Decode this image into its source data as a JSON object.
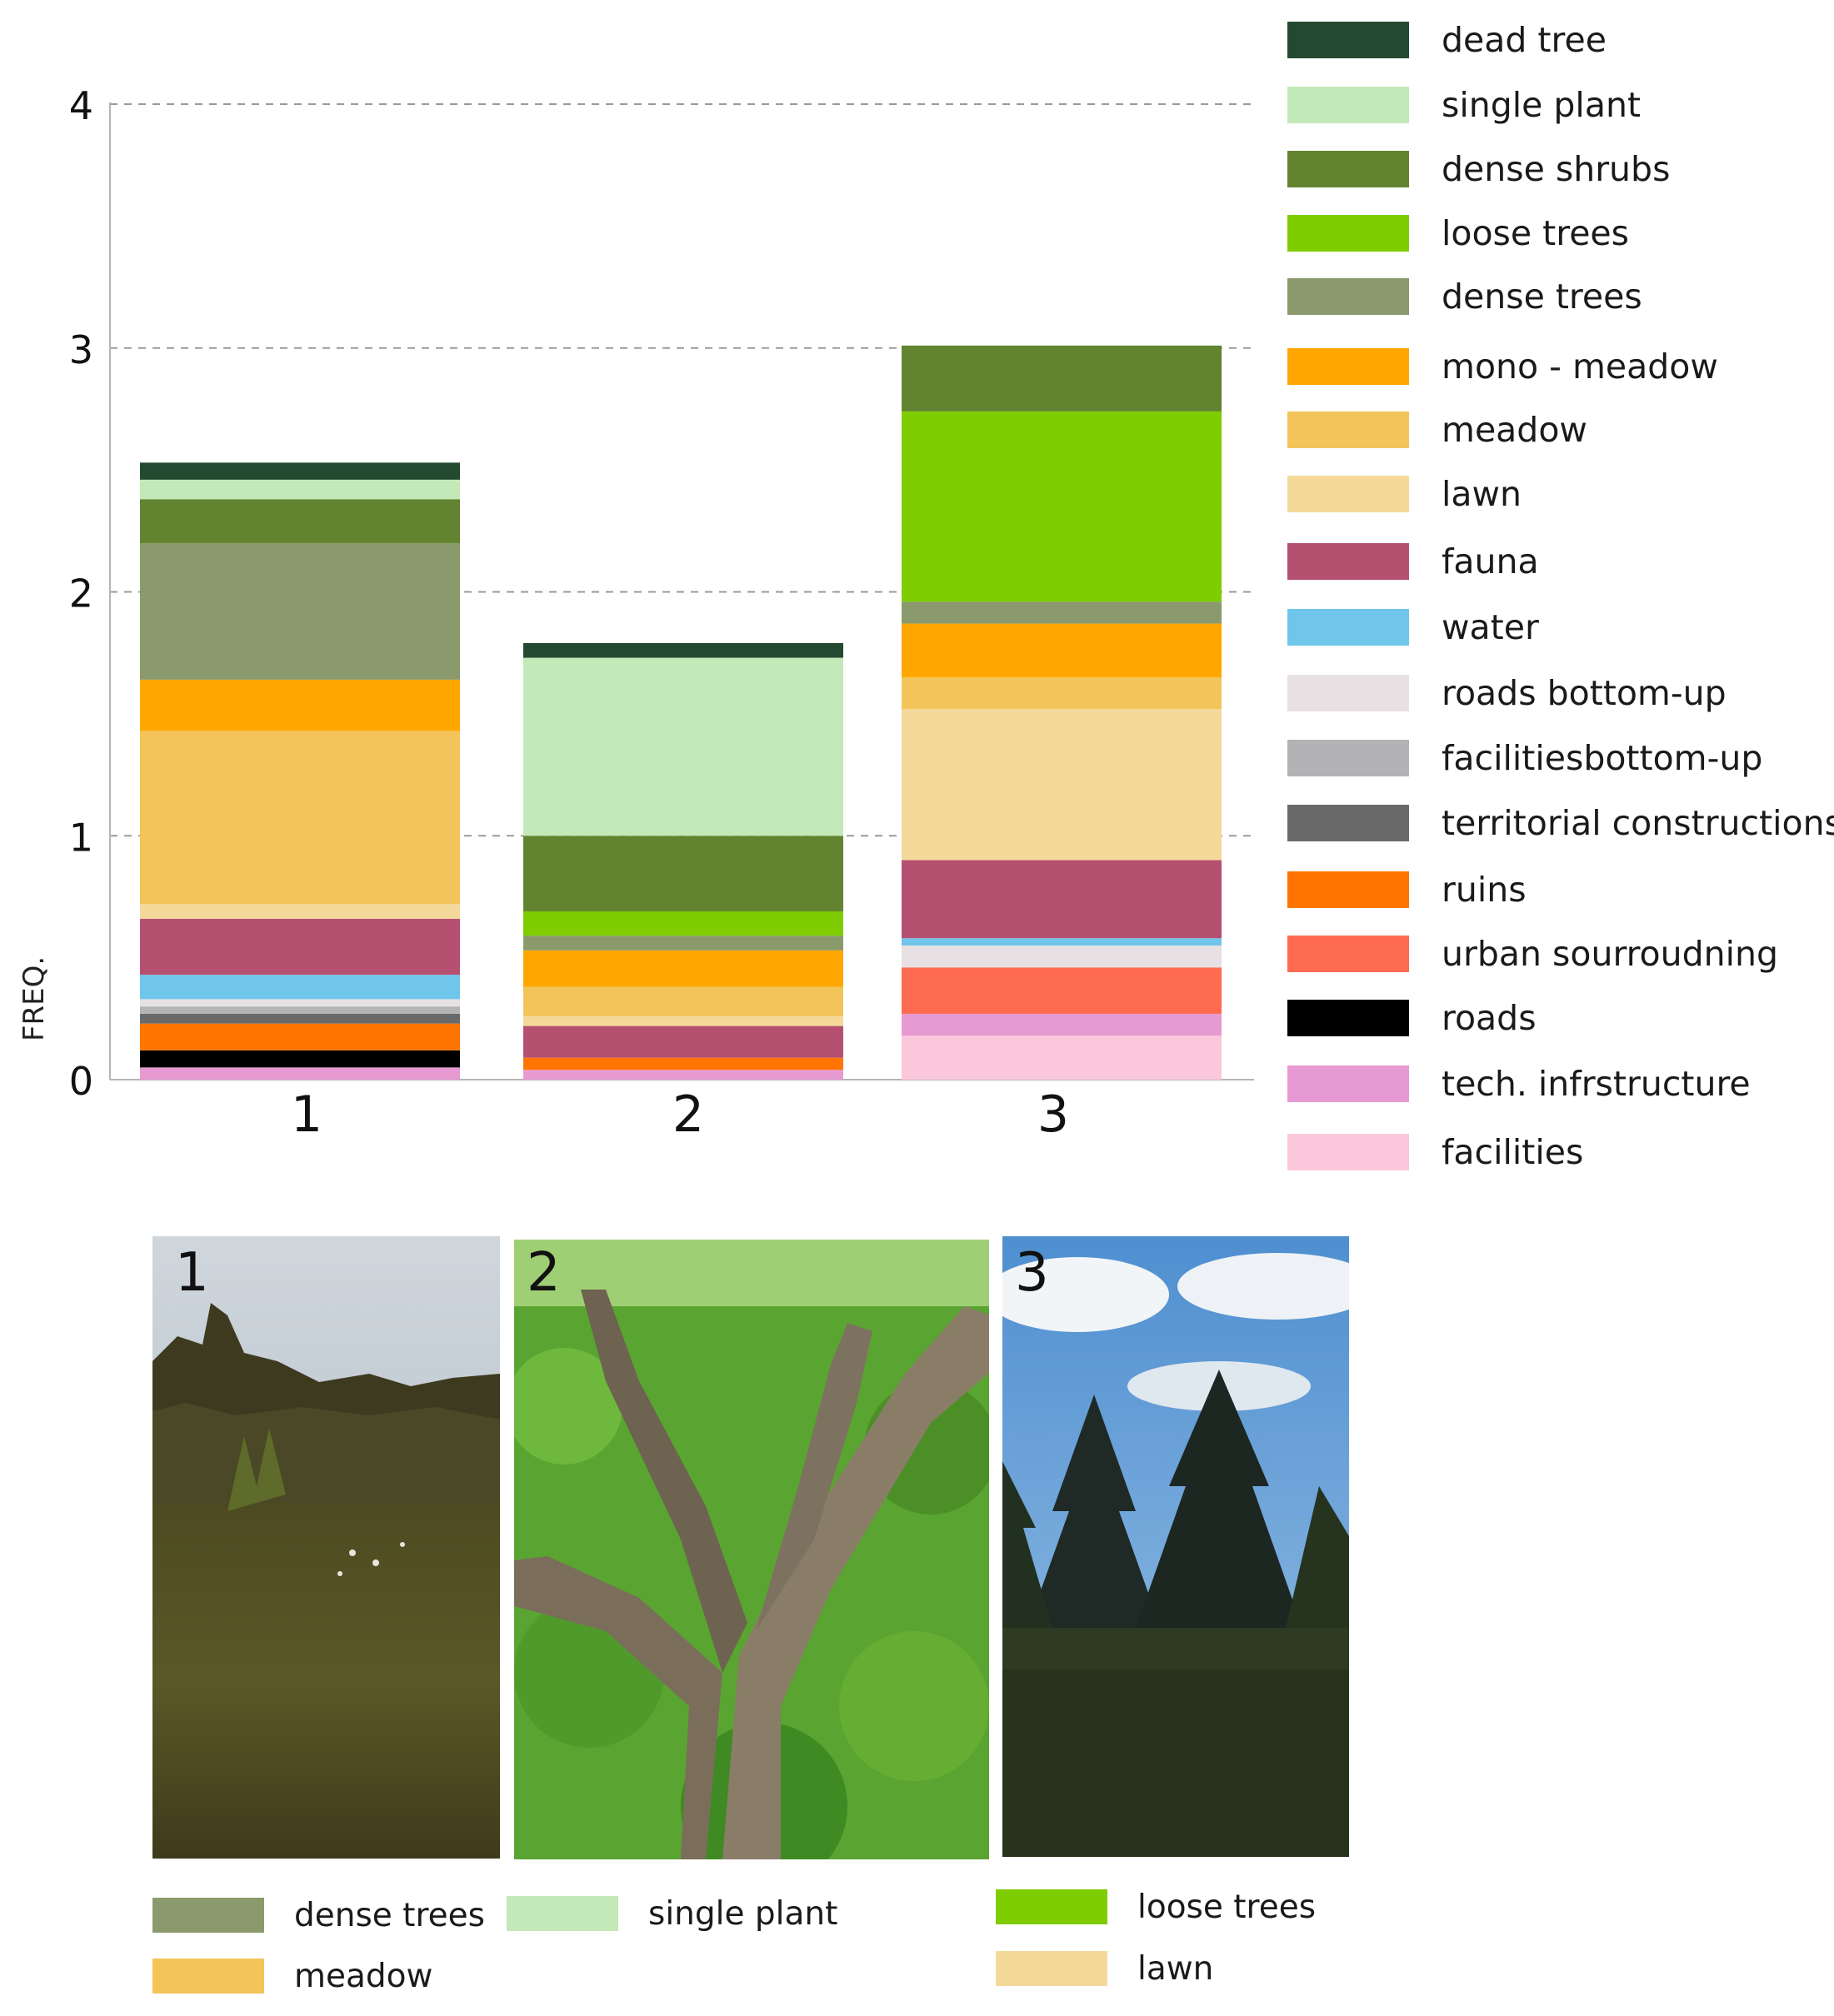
{
  "chart_data": {
    "type": "bar",
    "stacked": true,
    "categories": [
      "1",
      "2",
      "3"
    ],
    "ylabel": "FREQ.",
    "ylim": [
      0,
      4
    ],
    "yticks": [
      0,
      1,
      2,
      3,
      4
    ],
    "grid": "dashed horizontal",
    "legend_placement": "right",
    "series": [
      {
        "name": "facilities",
        "color": "#FBC8DB",
        "values": [
          0.0,
          0.0,
          0.18
        ]
      },
      {
        "name": "tech. infrstructure",
        "color": "#E79AD2",
        "values": [
          0.05,
          0.04,
          0.09
        ]
      },
      {
        "name": "roads",
        "color": "#000000",
        "values": [
          0.07,
          0.0,
          0.0
        ]
      },
      {
        "name": "urban sourroudning",
        "color": "#FF6B50",
        "values": [
          0.0,
          0.0,
          0.19
        ]
      },
      {
        "name": "ruins",
        "color": "#FF7500",
        "values": [
          0.11,
          0.05,
          0.0
        ]
      },
      {
        "name": "territorial constructions",
        "color": "#6A6A6A",
        "values": [
          0.04,
          0.0,
          0.0
        ]
      },
      {
        "name": "facilitiesbottom-up",
        "color": "#B3B3B5",
        "values": [
          0.03,
          0.0,
          0.0
        ]
      },
      {
        "name": "roads bottom-up",
        "color": "#E8E1E3",
        "values": [
          0.03,
          0.0,
          0.09
        ]
      },
      {
        "name": "water",
        "color": "#6FC6EA",
        "values": [
          0.1,
          0.0,
          0.03
        ]
      },
      {
        "name": "fauna",
        "color": "#B65070",
        "values": [
          0.23,
          0.13,
          0.32
        ]
      },
      {
        "name": "lawn",
        "color": "#F4D99A",
        "values": [
          0.06,
          0.04,
          0.62
        ]
      },
      {
        "name": "meadow",
        "color": "#F3C45A",
        "values": [
          0.71,
          0.12,
          0.13
        ]
      },
      {
        "name": "mono - meadow",
        "color": "#FFA700",
        "values": [
          0.21,
          0.15,
          0.22
        ]
      },
      {
        "name": "dense trees",
        "color": "#8B9A6C",
        "values": [
          0.56,
          0.06,
          0.09
        ]
      },
      {
        "name": "loose trees",
        "color": "#7FCC00",
        "values": [
          0.0,
          0.1,
          0.78
        ]
      },
      {
        "name": "dense shrubs",
        "color": "#628430",
        "values": [
          0.18,
          0.31,
          0.27
        ]
      },
      {
        "name": "single plant",
        "color": "#C4E9B8",
        "values": [
          0.08,
          0.73,
          0.0
        ]
      },
      {
        "name": "dead tree",
        "color": "#234A30",
        "values": [
          0.07,
          0.06,
          0.0
        ]
      }
    ]
  },
  "legend": [
    {
      "label": "dead tree",
      "color": "#234A30"
    },
    {
      "label": "single plant",
      "color": "#C4E9B8"
    },
    {
      "label": "dense shrubs",
      "color": "#628430"
    },
    {
      "label": "loose trees",
      "color": "#7FCC00"
    },
    {
      "label": "dense trees",
      "color": "#8B9A6C"
    },
    {
      "label": "mono - meadow",
      "color": "#FFA700"
    },
    {
      "label": "meadow",
      "color": "#F3C45A"
    },
    {
      "label": "lawn",
      "color": "#F4D99A"
    },
    {
      "label": "fauna",
      "color": "#B65070"
    },
    {
      "label": "water",
      "color": "#6FC6EA"
    },
    {
      "label": "roads bottom-up",
      "color": "#E8E1E3"
    },
    {
      "label": "facilitiesbottom-up",
      "color": "#B3B3B5"
    },
    {
      "label": "territorial constructions",
      "color": "#6A6A6A"
    },
    {
      "label": "ruins",
      "color": "#FF7500"
    },
    {
      "label": "urban sourroudning",
      "color": "#FF6B50"
    },
    {
      "label": "roads",
      "color": "#000000"
    },
    {
      "label": "tech. infrstructure",
      "color": "#E79AD2"
    },
    {
      "label": "facilities",
      "color": "#FBC8DB"
    }
  ],
  "photos": [
    {
      "number": "1"
    },
    {
      "number": "2"
    },
    {
      "number": "3"
    }
  ],
  "photo_legend": [
    {
      "label": "dense trees",
      "color": "#8B9A6C"
    },
    {
      "label": "single plant",
      "color": "#C4E9B8"
    },
    {
      "label": "loose trees",
      "color": "#7FCC00"
    },
    {
      "label": "meadow",
      "color": "#F3C45A"
    },
    {
      "label": "lawn",
      "color": "#F4D99A"
    }
  ]
}
